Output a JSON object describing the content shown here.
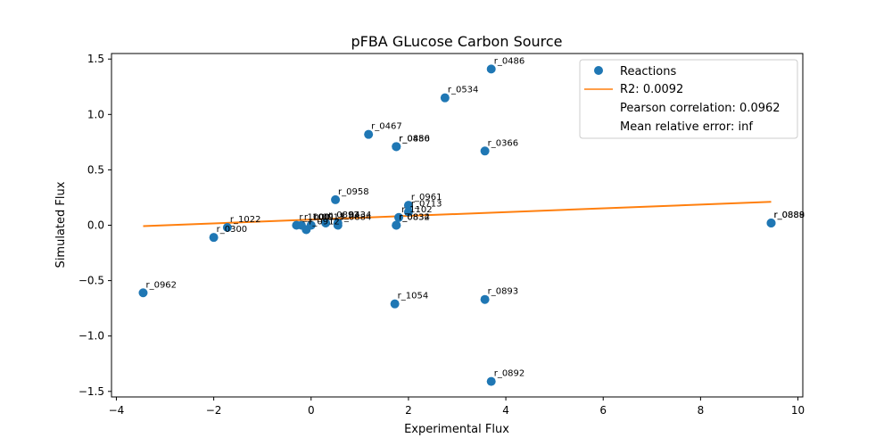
{
  "chart_data": {
    "type": "scatter",
    "title": "pFBA GLucose Carbon Source",
    "xlabel": "Experimental Flux",
    "ylabel": "Simulated Flux",
    "xlim": [
      -4.1,
      10.1
    ],
    "ylim": [
      -1.55,
      1.55
    ],
    "xticks": [
      -4,
      -2,
      0,
      2,
      4,
      6,
      8,
      10
    ],
    "yticks": [
      -1.5,
      -1.0,
      -0.5,
      0.0,
      0.5,
      1.0,
      1.5
    ],
    "xtick_labels": [
      "−4",
      "−2",
      "0",
      "2",
      "4",
      "6",
      "8",
      "10"
    ],
    "ytick_labels": [
      "−1.5",
      "−1.0",
      "−0.5",
      "0.0",
      "0.5",
      "1.0",
      "1.5"
    ],
    "grid": false,
    "legend_position": "top-right",
    "colors": {
      "points": "#1f77b4",
      "fit_line": "#ff7f0e"
    },
    "series": [
      {
        "name": "Reactions",
        "points": [
          {
            "x": 3.7,
            "y": 1.41,
            "label": "r_0486"
          },
          {
            "x": 2.75,
            "y": 1.15,
            "label": "r_0534"
          },
          {
            "x": 1.18,
            "y": 0.82,
            "label": "r_0467"
          },
          {
            "x": 1.75,
            "y": 0.71,
            "label": "r_0450"
          },
          {
            "x": 1.75,
            "y": 0.71,
            "label": "r_0886"
          },
          {
            "x": 3.57,
            "y": 0.67,
            "label": "r_0366"
          },
          {
            "x": 0.5,
            "y": 0.23,
            "label": "r_0958"
          },
          {
            "x": 2.0,
            "y": 0.18,
            "label": "r_0961"
          },
          {
            "x": 2.0,
            "y": 0.12,
            "label": "r_0713"
          },
          {
            "x": 1.8,
            "y": 0.07,
            "label": "r_1102"
          },
          {
            "x": 1.75,
            "y": 0.0,
            "label": "r_0832"
          },
          {
            "x": 1.75,
            "y": 0.0,
            "label": "r_0834"
          },
          {
            "x": -1.72,
            "y": -0.02,
            "label": "r_1022"
          },
          {
            "x": -2.0,
            "y": -0.11,
            "label": "r_0300"
          },
          {
            "x": -0.3,
            "y": 0.0,
            "label": "r_1000"
          },
          {
            "x": -0.2,
            "y": 0.0,
            "label": "r_1001"
          },
          {
            "x": -0.1,
            "y": -0.04,
            "label": "r_0912"
          },
          {
            "x": 0.0,
            "y": 0.0,
            "label": "r_0913"
          },
          {
            "x": 0.3,
            "y": 0.02,
            "label": "r_0892"
          },
          {
            "x": 0.55,
            "y": 0.0,
            "label": "r_0884"
          },
          {
            "x": 0.55,
            "y": 0.02,
            "label": "r_0434"
          },
          {
            "x": 9.45,
            "y": 0.02,
            "label": "r_0888"
          },
          {
            "x": 9.45,
            "y": 0.02,
            "label": "r_0889"
          },
          {
            "x": -3.45,
            "y": -0.61,
            "label": "r_0962"
          },
          {
            "x": 1.72,
            "y": -0.71,
            "label": "r_1054"
          },
          {
            "x": 3.57,
            "y": -0.67,
            "label": "r_0893"
          },
          {
            "x": 3.7,
            "y": -1.41,
            "label": "r_0892"
          }
        ]
      },
      {
        "name": "R2: 0.0092",
        "type": "line",
        "x": [
          -3.45,
          9.45
        ],
        "y": [
          -0.008,
          0.211
        ]
      }
    ],
    "legend_entries": [
      "Reactions",
      "R2: 0.0092",
      "Pearson correlation: 0.0962",
      "Mean relative error: inf"
    ]
  }
}
